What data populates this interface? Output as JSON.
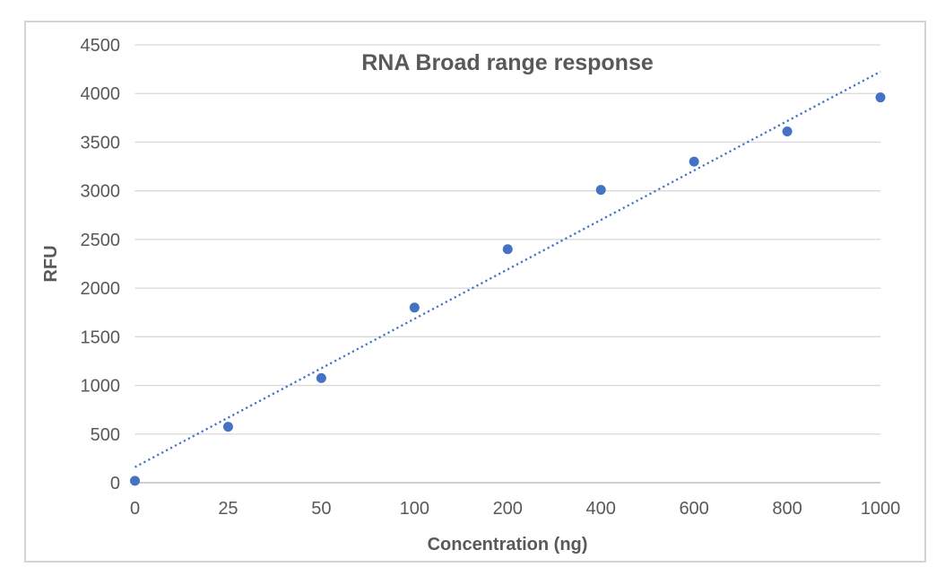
{
  "frame": {
    "background": "#ffffff",
    "border_color": "#d4d4d4"
  },
  "chart_data": {
    "type": "scatter",
    "title": "RNA Broad range response",
    "xlabel": "Concentration (ng)",
    "ylabel": "RFU",
    "x_axis_type": "categorical",
    "categories": [
      "0",
      "25",
      "50",
      "100",
      "200",
      "400",
      "600",
      "800",
      "1000"
    ],
    "values": [
      20,
      575,
      1075,
      1800,
      2400,
      3010,
      3300,
      3610,
      3960
    ],
    "ylim": [
      0,
      4500
    ],
    "y_ticks": [
      "0",
      "500",
      "1000",
      "1500",
      "2000",
      "2500",
      "3000",
      "3500",
      "4000",
      "4500"
    ],
    "grid": "horizontal",
    "legend": "none",
    "trendline": {
      "style": "dotted",
      "start_index": 0,
      "start_value": 160,
      "end_index": 8,
      "end_value": 4225
    },
    "colors": {
      "marker": "#4472C4",
      "trendline": "#4472C4",
      "gridline": "#D9D9D9",
      "axis_line": "#BFBFBF",
      "text": "#595959",
      "title": "#595959"
    }
  }
}
